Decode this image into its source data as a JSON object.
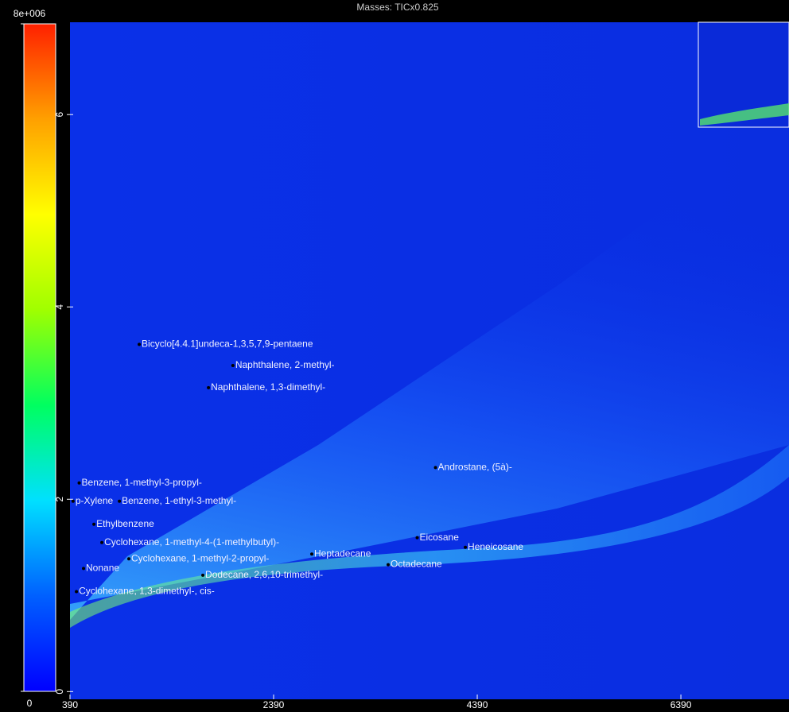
{
  "chart_data": {
    "type": "heatmap",
    "title": "Masses: TICx0.825",
    "xlim": [
      390,
      7452
    ],
    "xticks": [
      390,
      2390,
      4390,
      6390
    ],
    "ylim": [
      -0.08,
      6.96
    ],
    "yticks": [
      0,
      2,
      4,
      6
    ],
    "zlim": [
      0,
      8000000
    ],
    "zticks": [
      0,
      {
        "value": 8000000,
        "label": "8e+006"
      }
    ],
    "colorscale": [
      "#0000ff",
      "#0060ff",
      "#00e0ff",
      "#00ff60",
      "#a0ff00",
      "#ffff00",
      "#ffa000",
      "#ff2000"
    ],
    "peak_labels": [
      {
        "text": "Bicyclo[4.4.1]undeca-1,3,5,7,9-pentaene",
        "x": 1070,
        "y": 3.61
      },
      {
        "text": "Naphthalene, 2-methyl-",
        "x": 1990,
        "y": 3.39
      },
      {
        "text": "Naphthalene, 1,3-dimethyl-",
        "x": 1750,
        "y": 3.16
      },
      {
        "text": "Androstane, (5à)-",
        "x": 3980,
        "y": 2.33
      },
      {
        "text": "Benzene, 1-methyl-3-propyl-",
        "x": 480,
        "y": 2.17
      },
      {
        "text": "p-Xylene",
        "x": 420,
        "y": 1.98
      },
      {
        "text": "Benzene, 1-ethyl-3-methyl-",
        "x": 875,
        "y": 1.98
      },
      {
        "text": "Ethylbenzene",
        "x": 625,
        "y": 1.74
      },
      {
        "text": "Cyclohexane, 1-methyl-4-(1-methylbutyl)-",
        "x": 703,
        "y": 1.55
      },
      {
        "text": "Eicosane",
        "x": 3800,
        "y": 1.6
      },
      {
        "text": "Heneicosane",
        "x": 4273,
        "y": 1.5
      },
      {
        "text": "Cyclohexane, 1-methyl-2-propyl-",
        "x": 968,
        "y": 1.38
      },
      {
        "text": "Heptadecane",
        "x": 2765,
        "y": 1.43
      },
      {
        "text": "Octadecane",
        "x": 3515,
        "y": 1.32
      },
      {
        "text": "Nonane",
        "x": 523,
        "y": 1.28
      },
      {
        "text": "Dodecane, 2,6,10-trimethyl-",
        "x": 1695,
        "y": 1.21
      },
      {
        "text": "Cyclohexane, 1,3-dimethyl-, cis-",
        "x": 453,
        "y": 1.04
      }
    ]
  }
}
